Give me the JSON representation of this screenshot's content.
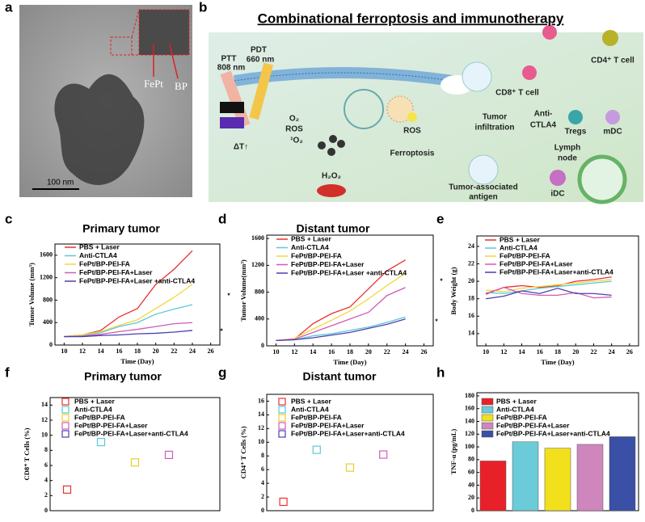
{
  "panel_labels": [
    "a",
    "b",
    "c",
    "d",
    "e",
    "f",
    "g",
    "h"
  ],
  "image": {
    "labels": [
      "FePt",
      "BP"
    ],
    "scale_bar": "100 nm"
  },
  "diagram": {
    "title": "Combinational ferroptosis and immunotherapy",
    "labels": [
      "PTT",
      "808 nm",
      "PDT",
      "660 nm",
      "ΔT↑",
      "O₂",
      "ROS",
      "¹O₂",
      "H₂O₂",
      "ROS",
      "Ferroptosis",
      "Tumor",
      "infiltration",
      "CD8⁺ T cell",
      "CD4⁺ T cell",
      "Anti-",
      "CTLA4",
      "Tregs",
      "mDC",
      "Lymph",
      "node",
      "Tumor-associated",
      "antigen",
      "iDC"
    ]
  },
  "chart_data": [
    {
      "type": "line",
      "title": "Primary tumor",
      "x_label": "Time (Day)",
      "y_label": "Tumor Volume (mm³)",
      "x": [
        10,
        12,
        14,
        16,
        18,
        20,
        22,
        24
      ],
      "xlim": [
        9,
        27
      ],
      "xticks": [
        10,
        12,
        14,
        16,
        18,
        20,
        22,
        24,
        26
      ],
      "ylim": [
        0,
        1800
      ],
      "yticks": [
        0,
        400,
        800,
        1200,
        1600
      ],
      "annotations": [
        "*",
        "*"
      ],
      "series": [
        {
          "name": "PBS + Laser",
          "color": "#e8312f",
          "values": [
            150,
            180,
            260,
            500,
            650,
            1080,
            1350,
            1680
          ]
        },
        {
          "name": "Anti-CTLA4",
          "color": "#5bc8d8",
          "values": [
            150,
            170,
            220,
            330,
            400,
            550,
            640,
            720
          ]
        },
        {
          "name": "FePt/BP-PEI-FA",
          "color": "#f0d83a",
          "values": [
            150,
            180,
            240,
            350,
            450,
            650,
            850,
            1080
          ]
        },
        {
          "name": "FePt/BP-PEI-FA+Laser",
          "color": "#d15bb6",
          "values": [
            150,
            160,
            190,
            240,
            280,
            330,
            380,
            400
          ]
        },
        {
          "name": "FePt/BP-PEI-FA+Laser +anti-CTLA4",
          "color": "#4a3fb0",
          "values": [
            150,
            150,
            170,
            180,
            200,
            210,
            230,
            260
          ]
        }
      ]
    },
    {
      "type": "line",
      "title": "Distant tumor",
      "x_label": "Time (Day)",
      "y_label": "Tumor Volume(mm³)",
      "x": [
        10,
        12,
        14,
        16,
        18,
        20,
        22,
        24
      ],
      "xlim": [
        9,
        27
      ],
      "xticks": [
        10,
        12,
        14,
        16,
        18,
        20,
        22,
        24,
        26
      ],
      "ylim": [
        0,
        1650
      ],
      "yticks": [
        0,
        400,
        800,
        1200,
        1600
      ],
      "annotations": [
        "*",
        "*"
      ],
      "series": [
        {
          "name": "PBS + Laser",
          "color": "#e8312f",
          "values": [
            80,
            100,
            330,
            480,
            580,
            850,
            1120,
            1280
          ]
        },
        {
          "name": "Anti-CTLA4",
          "color": "#5bc8d8",
          "values": [
            80,
            90,
            150,
            180,
            230,
            280,
            350,
            430
          ]
        },
        {
          "name": "FePt/BP-PEI-FA",
          "color": "#f0d83a",
          "values": [
            80,
            110,
            250,
            380,
            520,
            700,
            900,
            1080
          ]
        },
        {
          "name": "FePt/BP-PEI-FA+Laser",
          "color": "#d15bb6",
          "values": [
            80,
            100,
            200,
            300,
            400,
            500,
            750,
            870
          ]
        },
        {
          "name": "FePt/BP-PEI-FA+Laser +anti-CTLA4",
          "color": "#4a3fb0",
          "values": [
            80,
            90,
            120,
            160,
            200,
            260,
            320,
            400
          ]
        }
      ]
    },
    {
      "type": "line",
      "x_label": "Time (Day)",
      "y_label": "Body Weight (g)",
      "x": [
        10,
        12,
        14,
        16,
        18,
        20,
        22,
        24
      ],
      "xlim": [
        9,
        27
      ],
      "xticks": [
        10,
        12,
        14,
        16,
        18,
        20,
        22,
        24,
        26
      ],
      "ylim": [
        12.6,
        25.2
      ],
      "yticks": [
        14,
        16,
        18,
        20,
        22,
        24
      ],
      "series": [
        {
          "name": "PBS + Laser",
          "color": "#e8312f",
          "values": [
            18.5,
            19.3,
            19.5,
            19.3,
            19.5,
            20,
            20.2,
            20.5
          ]
        },
        {
          "name": "Anti-CTLA4",
          "color": "#5bc8d8",
          "values": [
            18.7,
            18.6,
            18.9,
            19.2,
            19.4,
            19.6,
            19.8,
            20
          ]
        },
        {
          "name": "FePt/BP-PEI-FA",
          "color": "#f0d83a",
          "values": [
            19,
            18.8,
            19.2,
            19.4,
            19.6,
            19.8,
            20,
            20.2
          ]
        },
        {
          "name": "FePt/BP-PEI-FA+Laser",
          "color": "#d15bb6",
          "values": [
            18.6,
            19.3,
            18.6,
            18.4,
            18.4,
            18.7,
            18.1,
            18.2
          ]
        },
        {
          "name": "FePt/BP-PEI-FA+Laser+anti-CTLA4",
          "color": "#4a3fb0",
          "values": [
            18,
            18.3,
            18.9,
            18.6,
            19.2,
            18.6,
            18.6,
            18.4
          ]
        }
      ]
    },
    {
      "type": "scatter",
      "title": "Primary tumor",
      "y_label": "CD8⁺ T Cells (%)",
      "categories": [
        null,
        null,
        null,
        null,
        null
      ],
      "ylim": [
        0,
        15
      ],
      "yticks": [
        0,
        2,
        4,
        6,
        8,
        10,
        12,
        14
      ],
      "series": [
        {
          "name": "PBS + Laser",
          "color": "#e8312f",
          "values": [
            2.8,
            null,
            null,
            null,
            null
          ]
        },
        {
          "name": "Anti-CTLA4",
          "color": "#5bc8d8",
          "values": [
            null,
            9.1,
            null,
            null,
            null
          ]
        },
        {
          "name": "FePt/BP-PEI-FA",
          "color": "#e8cf2a",
          "values": [
            null,
            null,
            6.4,
            null,
            null
          ]
        },
        {
          "name": "FePt/BP-PEI-FA+Laser",
          "color": "#d15bb6",
          "values": [
            null,
            null,
            null,
            7.4,
            null
          ]
        },
        {
          "name": "FePt/BP-PEI-FA+Laser+anti-CTLA4",
          "color": "#4a3fb0",
          "values": [
            null,
            null,
            null,
            null,
            null
          ]
        }
      ]
    },
    {
      "type": "scatter",
      "title": "Distant tumor",
      "y_label": "CD4⁺ T Cells (%)",
      "categories": [
        null,
        null,
        null,
        null,
        null
      ],
      "ylim": [
        0,
        17
      ],
      "yticks": [
        0,
        2,
        4,
        6,
        8,
        10,
        12,
        14,
        16
      ],
      "series": [
        {
          "name": "PBS + Laser",
          "color": "#e8312f",
          "values": [
            1.3,
            null,
            null,
            null,
            null
          ]
        },
        {
          "name": "Anti-CTLA4",
          "color": "#5bc8d8",
          "values": [
            null,
            8.9,
            null,
            null,
            null
          ]
        },
        {
          "name": "FePt/BP-PEI-FA",
          "color": "#e8cf2a",
          "values": [
            null,
            null,
            6.3,
            null,
            null
          ]
        },
        {
          "name": "FePt/BP-PEI-FA+Laser",
          "color": "#d15bb6",
          "values": [
            null,
            null,
            null,
            8.2,
            null
          ]
        },
        {
          "name": "FePt/BP-PEI-FA+Laser+anti-CTLA4",
          "color": "#4a3fb0",
          "values": [
            null,
            null,
            null,
            null,
            null
          ]
        }
      ]
    },
    {
      "type": "bar",
      "y_label": "TNF-α (pg/mL)",
      "categories": [
        null,
        null,
        null,
        null,
        null
      ],
      "ylim": [
        0,
        185
      ],
      "yticks": [
        0,
        20,
        40,
        60,
        80,
        100,
        120,
        140,
        160,
        180
      ],
      "series": [
        {
          "name": "PBS + Laser",
          "color": "#e8202a",
          "values": [
            78,
            null,
            null,
            null,
            null
          ]
        },
        {
          "name": "Anti-CTLA4",
          "color": "#6bcbd9",
          "values": [
            null,
            108,
            null,
            null,
            null
          ]
        },
        {
          "name": "FePt/BP-PEI-FA",
          "color": "#f2e01d",
          "values": [
            null,
            null,
            98,
            null,
            null
          ]
        },
        {
          "name": "FePt/BP-PEI-FA+Laser",
          "color": "#cf86bd",
          "values": [
            null,
            null,
            null,
            104,
            null
          ]
        },
        {
          "name": "FePt/BP-PEI-FA+Laser+anti-CTLA4",
          "color": "#3a4fa6",
          "values": [
            null,
            null,
            null,
            null,
            116
          ]
        }
      ]
    }
  ]
}
